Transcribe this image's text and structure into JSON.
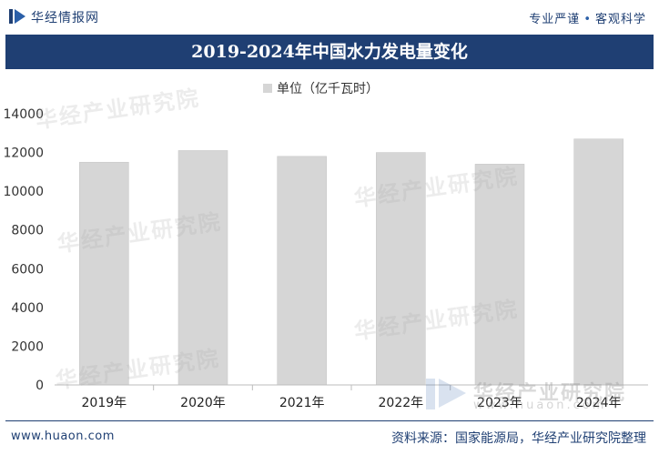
{
  "header": {
    "brand": "华经情报网",
    "slogan_left": "专业严谨",
    "slogan_sep": "•",
    "slogan_right": "客观科学"
  },
  "watermark": {
    "text": "华经产业研究院",
    "url": "www.huaon.com"
  },
  "footer": {
    "website": "www.huaon.com",
    "source": "资料来源：国家能源局，华经产业研究院整理"
  },
  "colors": {
    "brand": "#1f3f73",
    "bar": "#d6d6d6",
    "axis": "#bdbdbd"
  },
  "chart_data": {
    "type": "bar",
    "title": "2019-2024年中国水力发电量变化",
    "categories": [
      "2019年",
      "2020年",
      "2021年",
      "2022年",
      "2023年",
      "2024年"
    ],
    "series": [
      {
        "name": "单位（亿千瓦时）",
        "values": [
          11500,
          12100,
          11800,
          12000,
          11400,
          12700
        ]
      }
    ],
    "ylim": [
      0,
      14000
    ],
    "yticks": [
      0,
      2000,
      4000,
      6000,
      8000,
      10000,
      12000,
      14000
    ],
    "xlabel": "",
    "ylabel": "",
    "legend": "top-center",
    "grid": false
  }
}
